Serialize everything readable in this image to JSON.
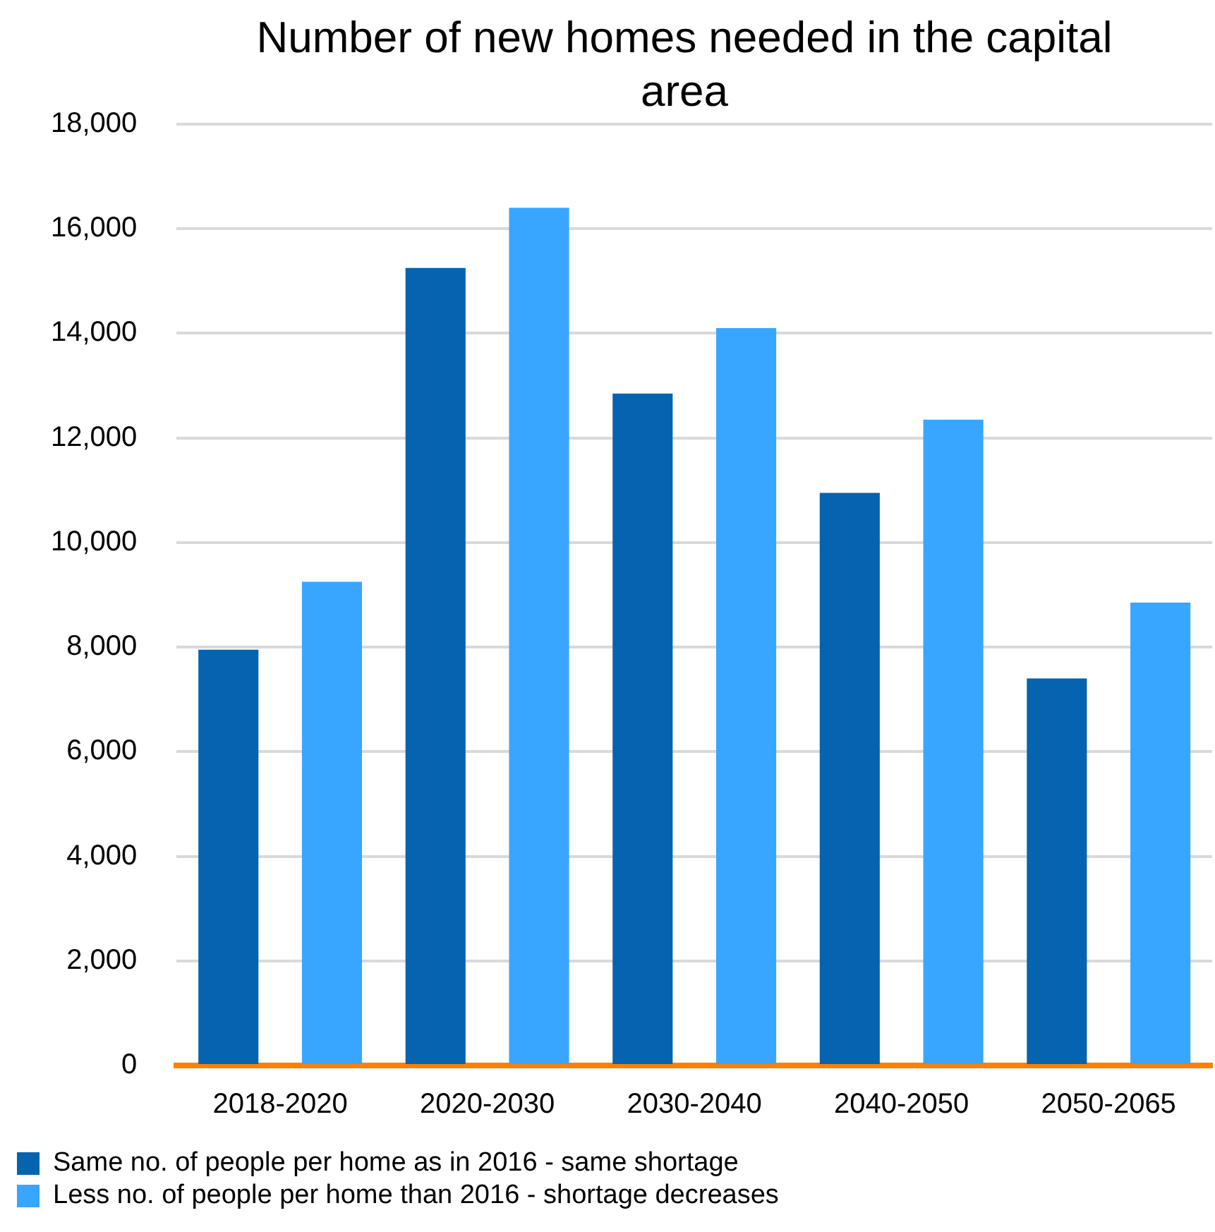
{
  "chart_data": {
    "type": "bar",
    "title": "Number of new homes needed in the capital area",
    "categories": [
      "2018-2020",
      "2020-2030",
      "2030-2040",
      "2040-2050",
      "2050-2065"
    ],
    "series": [
      {
        "name": "Same no. of people per home as in 2016 - same shortage",
        "color": "#0563b0",
        "values": [
          7950,
          15250,
          12850,
          10950,
          7400
        ]
      },
      {
        "name": "Less no. of people per home than 2016 - shortage decreases",
        "color": "#38a6ff",
        "values": [
          9250,
          16400,
          14100,
          12350,
          8850
        ]
      }
    ],
    "ylim": [
      0,
      18000
    ],
    "yticks": [
      0,
      {
        "value": 2000,
        "label": "2,000"
      },
      {
        "value": 4000,
        "label": "4,000"
      },
      {
        "value": 6000,
        "label": "6,000"
      },
      {
        "value": 8000,
        "label": "8,000"
      },
      {
        "value": 10000,
        "label": "10,000"
      },
      {
        "value": 12000,
        "label": "12,000"
      },
      {
        "value": 14000,
        "label": "14,000"
      },
      {
        "value": 16000,
        "label": "16,000"
      },
      {
        "value": 18000,
        "label": "18,000"
      }
    ],
    "grid": "y",
    "legend": "bottom"
  }
}
